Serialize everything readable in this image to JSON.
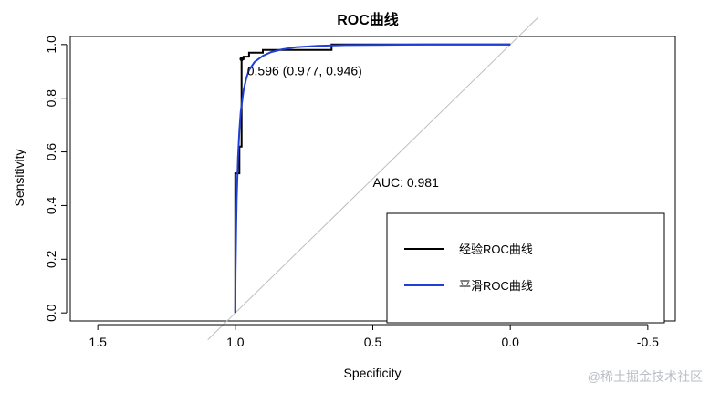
{
  "chart_data": {
    "type": "line",
    "title": "ROC曲线",
    "xlabel": "Specificity",
    "ylabel": "Sensitivity",
    "xlim": [
      1.6,
      -0.6
    ],
    "ylim": [
      -0.03,
      1.03
    ],
    "x_reversed": true,
    "x_ticks": [
      1.5,
      1.0,
      0.5,
      0.0,
      -0.5
    ],
    "x_tick_labels": [
      "1.5",
      "1.0",
      "0.5",
      "0.0",
      "-0.5"
    ],
    "y_ticks": [
      0.0,
      0.2,
      0.4,
      0.6,
      0.8,
      1.0
    ],
    "y_tick_labels": [
      "0.0",
      "0.2",
      "0.4",
      "0.6",
      "0.8",
      "1.0"
    ],
    "diagonal": {
      "from": [
        1.0,
        0.0
      ],
      "to": [
        0.0,
        1.0
      ],
      "color": "#bdbdbd"
    },
    "series": [
      {
        "name": "经验ROC曲线",
        "color": "#000000",
        "x": [
          1.0,
          1.0,
          0.99,
          0.99,
          0.985,
          0.985,
          0.977,
          0.977,
          0.97,
          0.97,
          0.96,
          0.96,
          0.95,
          0.95,
          0.9,
          0.9,
          0.65,
          0.65,
          0.0
        ],
        "y": [
          0.0,
          0.52,
          0.52,
          0.52,
          0.52,
          0.62,
          0.62,
          0.946,
          0.946,
          0.955,
          0.955,
          0.955,
          0.955,
          0.97,
          0.97,
          0.98,
          0.98,
          1.0,
          1.0
        ]
      },
      {
        "name": "平滑ROC曲线",
        "color": "#1f3fd6",
        "x": [
          1.0,
          0.999,
          0.997,
          0.995,
          0.99,
          0.985,
          0.98,
          0.97,
          0.96,
          0.95,
          0.93,
          0.9,
          0.87,
          0.83,
          0.78,
          0.7,
          0.6,
          0.45,
          0.3,
          0.15,
          0.0
        ],
        "y": [
          0.0,
          0.15,
          0.3,
          0.42,
          0.58,
          0.68,
          0.75,
          0.83,
          0.875,
          0.905,
          0.935,
          0.958,
          0.972,
          0.982,
          0.99,
          0.995,
          0.998,
          0.999,
          1.0,
          1.0,
          1.0
        ]
      }
    ],
    "annotations": [
      {
        "text": "0.596 (0.977, 0.946)",
        "x": 0.977,
        "y": 0.946,
        "color": "#000000"
      },
      {
        "text": "AUC: 0.981",
        "x": 0.5,
        "y": 0.47,
        "color": "#d94e6a"
      }
    ],
    "legend": {
      "placement": "bottom-right"
    }
  },
  "watermark": "@稀土掘金技术社区"
}
